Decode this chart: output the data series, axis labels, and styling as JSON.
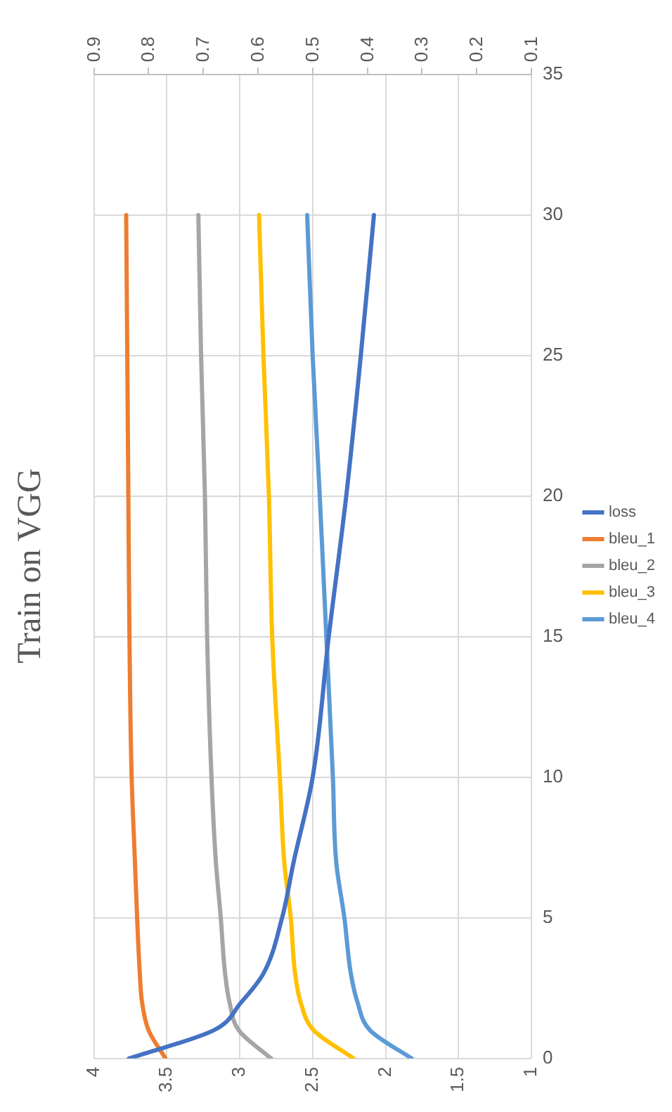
{
  "chart_data": {
    "type": "line",
    "title": "Train on VGG",
    "xlim": [
      4,
      1
    ],
    "xticks": [
      4,
      3.5,
      3,
      2.5,
      2,
      1.5,
      1
    ],
    "x2lim": [
      0.9,
      0.1
    ],
    "x2ticks": [
      0.9,
      0.8,
      0.7,
      0.6,
      0.5,
      0.4,
      0.3,
      0.2,
      0.1
    ],
    "ylim": [
      0,
      35
    ],
    "yticks": [
      0,
      5,
      10,
      15,
      20,
      25,
      30,
      35
    ],
    "grid": true,
    "legend": "right",
    "marker": "none",
    "line_style": "solid",
    "series": [
      {
        "name": "loss",
        "color": "#4472c4",
        "x": [
          3.76,
          3.18,
          2.99,
          2.84,
          2.71,
          2.63,
          2.5,
          2.39,
          2.27,
          2.17,
          2.08
        ],
        "values": [
          0,
          1,
          2,
          3,
          5,
          7,
          10,
          15,
          20,
          25,
          30
        ]
      },
      {
        "name": "bleu_1",
        "color": "#ed7d31",
        "axis": "x2",
        "x": [
          0.769,
          0.8,
          0.812,
          0.816,
          0.821,
          0.825,
          0.831,
          0.835,
          0.837,
          0.839,
          0.841
        ],
        "values": [
          0,
          1,
          2,
          3,
          5,
          7,
          10,
          15,
          20,
          25,
          30
        ]
      },
      {
        "name": "bleu_2",
        "color": "#a5a5a5",
        "axis": "x2",
        "x": [
          0.576,
          0.635,
          0.652,
          0.66,
          0.668,
          0.677,
          0.685,
          0.693,
          0.697,
          0.704,
          0.709
        ],
        "values": [
          0,
          1,
          2,
          3,
          5,
          7,
          10,
          15,
          20,
          25,
          30
        ]
      },
      {
        "name": "bleu_3",
        "color": "#ffc000",
        "axis": "x2",
        "x": [
          0.425,
          0.498,
          0.522,
          0.532,
          0.54,
          0.552,
          0.56,
          0.574,
          0.58,
          0.59,
          0.598
        ],
        "values": [
          0,
          1,
          2,
          3,
          5,
          7,
          10,
          15,
          20,
          25,
          30
        ]
      },
      {
        "name": "bleu_4",
        "color": "#5b9bd5",
        "axis": "x2",
        "x": [
          0.319,
          0.395,
          0.418,
          0.43,
          0.442,
          0.457,
          0.463,
          0.475,
          0.487,
          0.5,
          0.51
        ],
        "values": [
          0,
          1,
          2,
          3,
          5,
          7,
          10,
          15,
          20,
          25,
          30
        ]
      }
    ]
  }
}
